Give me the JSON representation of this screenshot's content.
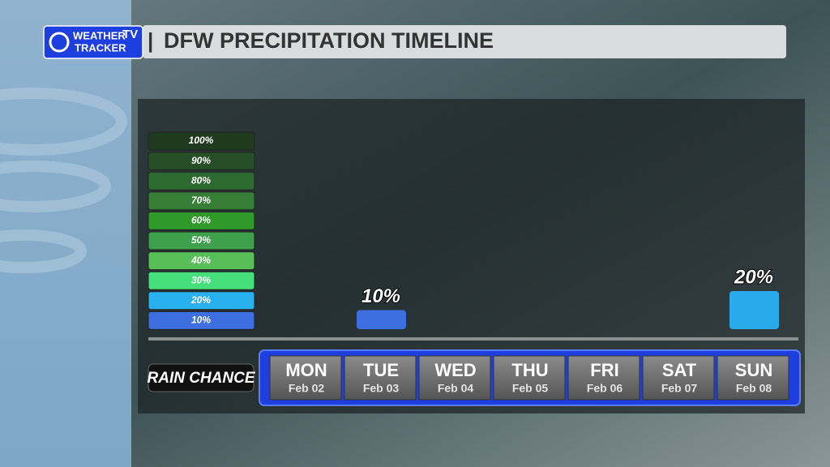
{
  "logo": {
    "line1": "WEATHER",
    "badge": "TV",
    "line2": "TRACKER"
  },
  "chart_data": {
    "type": "bar",
    "title": "DFW PRECIPITATION TIMELINE",
    "axis_label": "RAIN CHANCE",
    "categories": [
      "MON",
      "TUE",
      "WED",
      "THU",
      "FRI",
      "SAT",
      "SUN"
    ],
    "dates": [
      "Feb 02",
      "Feb 03",
      "Feb 04",
      "Feb 05",
      "Feb 06",
      "Feb 07",
      "Feb 08"
    ],
    "values": [
      null,
      10,
      null,
      null,
      null,
      null,
      20
    ],
    "value_labels": [
      null,
      "10%",
      null,
      null,
      null,
      null,
      "20%"
    ],
    "colors": [
      null,
      "#3d6fe0",
      null,
      null,
      null,
      null,
      "#29abeb"
    ],
    "ylim": [
      0,
      100
    ],
    "scale": [
      {
        "label": "100%",
        "color": "#1f3a1f"
      },
      {
        "label": "90%",
        "color": "#264f27"
      },
      {
        "label": "80%",
        "color": "#2d6a30"
      },
      {
        "label": "70%",
        "color": "#377e37"
      },
      {
        "label": "60%",
        "color": "#2f9a2a"
      },
      {
        "label": "50%",
        "color": "#3ea04b"
      },
      {
        "label": "40%",
        "color": "#58bf58"
      },
      {
        "label": "30%",
        "color": "#45e07b"
      },
      {
        "label": "20%",
        "color": "#29b0ee"
      },
      {
        "label": "10%",
        "color": "#3d6fe0"
      }
    ]
  }
}
